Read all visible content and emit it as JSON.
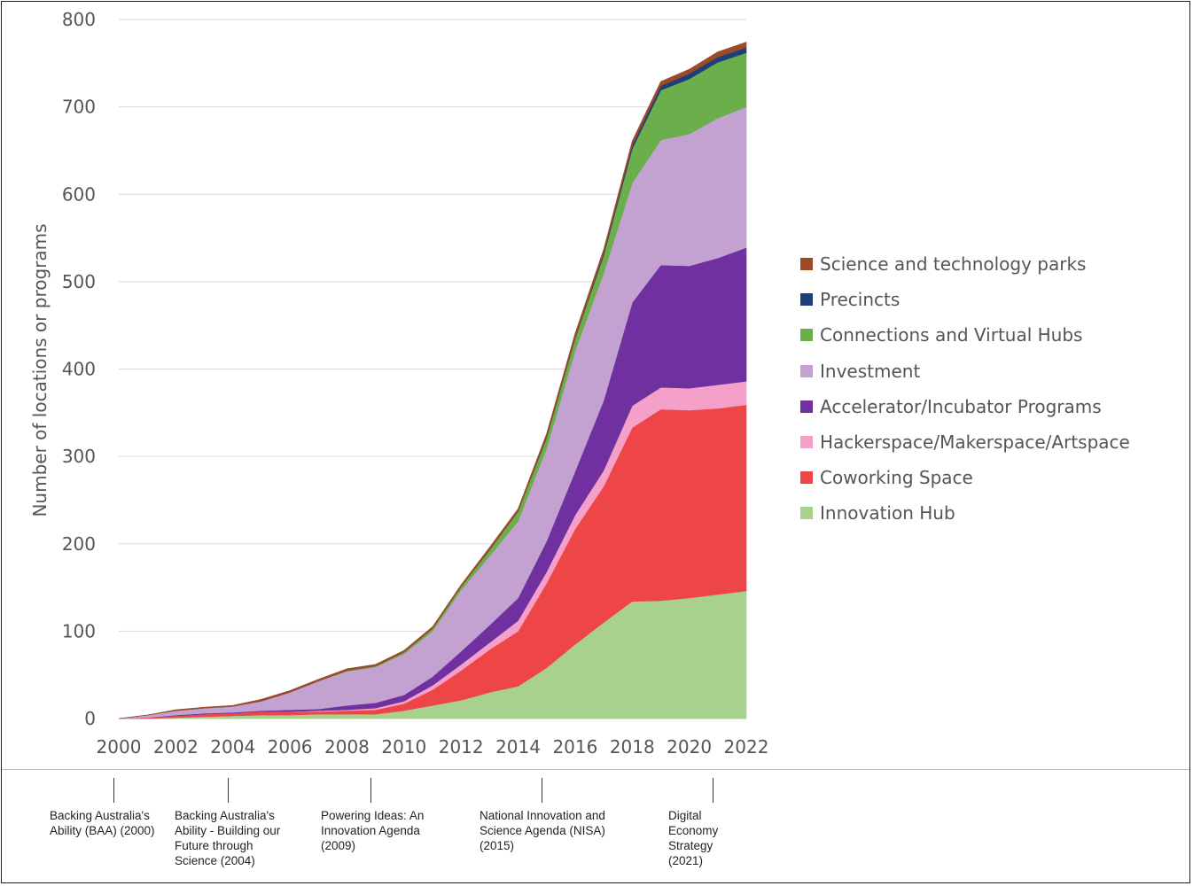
{
  "chart_data": {
    "type": "area",
    "stacked": true,
    "title": "",
    "xlabel": "",
    "ylabel": "Number of locations or programs",
    "ylim": [
      0,
      800
    ],
    "yticks": [
      0,
      100,
      200,
      300,
      400,
      500,
      600,
      700,
      800
    ],
    "xticks": [
      2000,
      2002,
      2004,
      2006,
      2008,
      2010,
      2012,
      2014,
      2016,
      2018,
      2020,
      2022
    ],
    "x": [
      2000,
      2001,
      2002,
      2003,
      2004,
      2005,
      2006,
      2007,
      2008,
      2009,
      2010,
      2011,
      2012,
      2013,
      2014,
      2015,
      2016,
      2017,
      2018,
      2019,
      2020,
      2021,
      2022
    ],
    "grid": true,
    "legend_position": "right",
    "series": [
      {
        "name": "Innovation Hub",
        "color": "#a9d18e",
        "values": [
          0,
          0,
          1,
          2,
          3,
          4,
          4,
          5,
          5,
          5,
          9,
          15,
          21,
          30,
          37,
          58,
          85,
          110,
          134,
          135,
          138,
          142,
          146
        ]
      },
      {
        "name": "Coworking Space",
        "color": "#ee4646",
        "values": [
          0,
          1,
          2,
          3,
          3,
          4,
          4,
          3,
          4,
          5,
          8,
          18,
          34,
          49,
          63,
          97,
          132,
          156,
          199,
          219,
          215,
          213,
          213
        ]
      },
      {
        "name": "Hackerspace/Makerspace/Artspace",
        "color": "#f4a0c8",
        "values": [
          0,
          0,
          0,
          0,
          0,
          0,
          0,
          1,
          1,
          2,
          3,
          5,
          7,
          8,
          12,
          13,
          16,
          18,
          25,
          25,
          25,
          27,
          27
        ]
      },
      {
        "name": "Accelerator/Incubator Programs",
        "color": "#7030a0",
        "values": [
          0,
          0,
          1,
          1,
          1,
          1,
          2,
          2,
          5,
          6,
          7,
          10,
          15,
          20,
          26,
          35,
          50,
          80,
          118,
          140,
          140,
          145,
          153
        ]
      },
      {
        "name": "Investment",
        "color": "#c3a1d0",
        "values": [
          0,
          3,
          5,
          6,
          7,
          11,
          20,
          32,
          39,
          41,
          47,
          52,
          70,
          79,
          88,
          106,
          138,
          146,
          137,
          143,
          151,
          160,
          161
        ]
      },
      {
        "name": "Connections and Virtual Hubs",
        "color": "#6aaf4c",
        "values": [
          0,
          0,
          0,
          0,
          0,
          0,
          0,
          0,
          1,
          1,
          2,
          3,
          4,
          7,
          11,
          12,
          14,
          20,
          39,
          57,
          63,
          64,
          62
        ]
      },
      {
        "name": "Precincts",
        "color": "#1f3f7a",
        "values": [
          0,
          0,
          0,
          0,
          0,
          0,
          0,
          0,
          0,
          0,
          0,
          0,
          0,
          0,
          0,
          1,
          1,
          2,
          4,
          5,
          6,
          6,
          6
        ]
      },
      {
        "name": "Science and technology parks",
        "color": "#9c4a27",
        "values": [
          0,
          0,
          1,
          1,
          1,
          2,
          2,
          2,
          2,
          2,
          2,
          2,
          2,
          3,
          3,
          4,
          5,
          5,
          5,
          5,
          5,
          6,
          6
        ]
      }
    ]
  },
  "policies": [
    {
      "label": "Backing Australia's Ability (BAA) (2000)",
      "lines": [
        "Backing Australia's",
        "Ability (BAA) (2000)"
      ],
      "year": 2000
    },
    {
      "label": "Backing Australia's Ability - Building our Future through Science (2004)",
      "lines": [
        "Backing Australia's",
        "Ability - Building our",
        "Future through",
        "Science (2004)"
      ],
      "year": 2004
    },
    {
      "label": "Powering Ideas: An Innovation Agenda (2009)",
      "lines": [
        "Powering Ideas: An",
        "Innovation Agenda",
        "(2009)"
      ],
      "year": 2009
    },
    {
      "label": "National Innovation and Science Agenda (NISA) (2015)",
      "lines": [
        "National Innovation and",
        "Science Agenda (NISA)",
        "(2015)"
      ],
      "year": 2015
    },
    {
      "label": "Digital Economy Strategy (2021)",
      "lines": [
        "Digital",
        "Economy",
        "Strategy",
        "(2021)"
      ],
      "year": 2021
    }
  ]
}
